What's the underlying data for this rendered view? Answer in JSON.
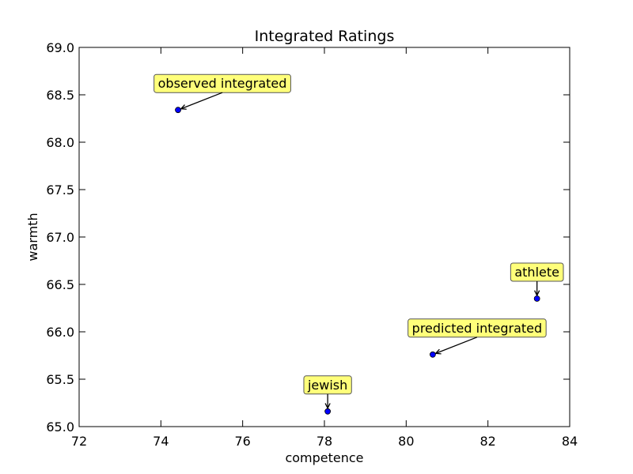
{
  "chart_data": {
    "type": "scatter",
    "title": "Integrated Ratings",
    "xlabel": "competence",
    "ylabel": "warmth",
    "xlim": [
      72,
      84
    ],
    "ylim": [
      65.0,
      69.0
    ],
    "xticks": [
      "72",
      "74",
      "76",
      "78",
      "80",
      "82",
      "84"
    ],
    "yticks": [
      "65.0",
      "65.5",
      "66.0",
      "66.5",
      "67.0",
      "67.5",
      "68.0",
      "68.5",
      "69.0"
    ],
    "grid": false,
    "points": [
      {
        "label": "observed integrated",
        "x": 74.42,
        "y": 68.34
      },
      {
        "label": "athlete",
        "x": 83.2,
        "y": 66.35
      },
      {
        "label": "predicted integrated",
        "x": 80.65,
        "y": 65.76
      },
      {
        "label": "jewish",
        "x": 78.08,
        "y": 65.16
      }
    ],
    "colors": {
      "marker_fill": "#0000ff",
      "annotation_box": "#ffff7a",
      "annotation_border": "#555555"
    }
  }
}
